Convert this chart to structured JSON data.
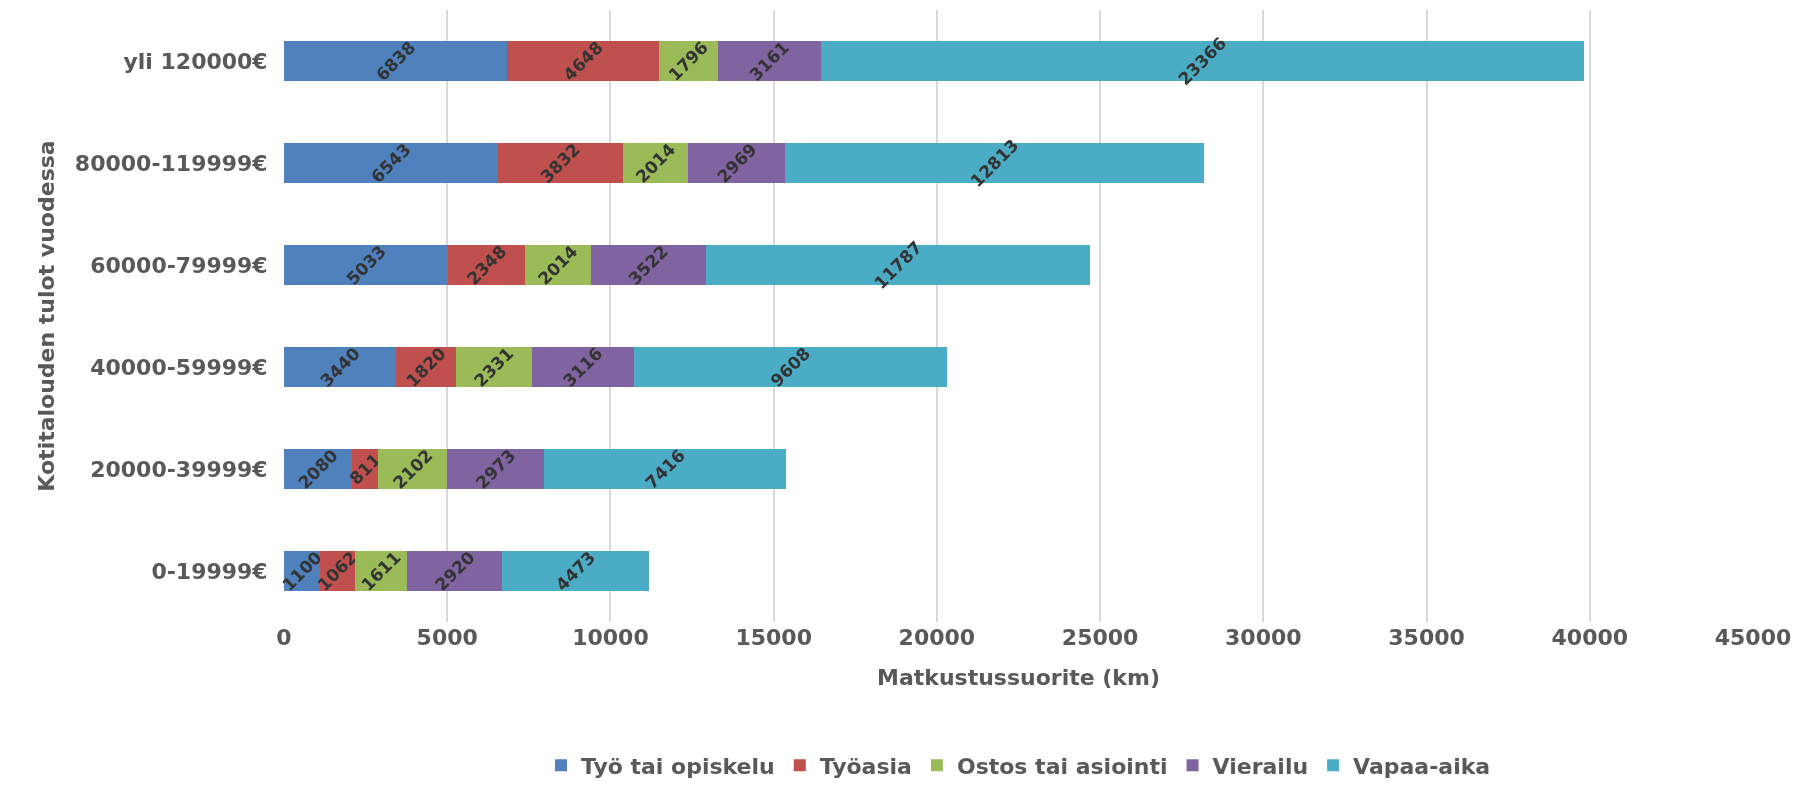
{
  "chart_data": {
    "type": "bar",
    "orientation": "horizontal",
    "stacked": true,
    "data_labels": true,
    "xlabel": "Matkustussuorite (km)",
    "ylabel": "Kotitalouden tulot vuodessa",
    "categories": [
      "yli 120000€",
      "80000-119999€",
      "60000-79999€",
      "40000-59999€",
      "20000-39999€",
      "0-19999€"
    ],
    "series": [
      {
        "name": "Työ tai opiskelu",
        "color": "#4f81bd",
        "values": [
          6838,
          6543,
          5033,
          3440,
          2080,
          1100
        ]
      },
      {
        "name": "Työasia",
        "color": "#c0504d",
        "values": [
          4648,
          3832,
          2348,
          1820,
          811,
          1062
        ]
      },
      {
        "name": "Ostos tai asiointi",
        "color": "#9bbb59",
        "values": [
          1796,
          2014,
          2014,
          2331,
          2102,
          1611
        ]
      },
      {
        "name": "Vierailu",
        "color": "#8064a2",
        "values": [
          3161,
          2969,
          3522,
          3116,
          2973,
          2920
        ]
      },
      {
        "name": "Vapaa-aika",
        "color": "#4bacc6",
        "values": [
          23366,
          12813,
          11787,
          9608,
          7416,
          4473
        ]
      }
    ],
    "xlim": [
      0,
      45000
    ],
    "xticks": [
      0,
      5000,
      10000,
      15000,
      20000,
      25000,
      30000,
      35000,
      40000,
      45000
    ],
    "grid": "x",
    "legend": "bottom"
  }
}
